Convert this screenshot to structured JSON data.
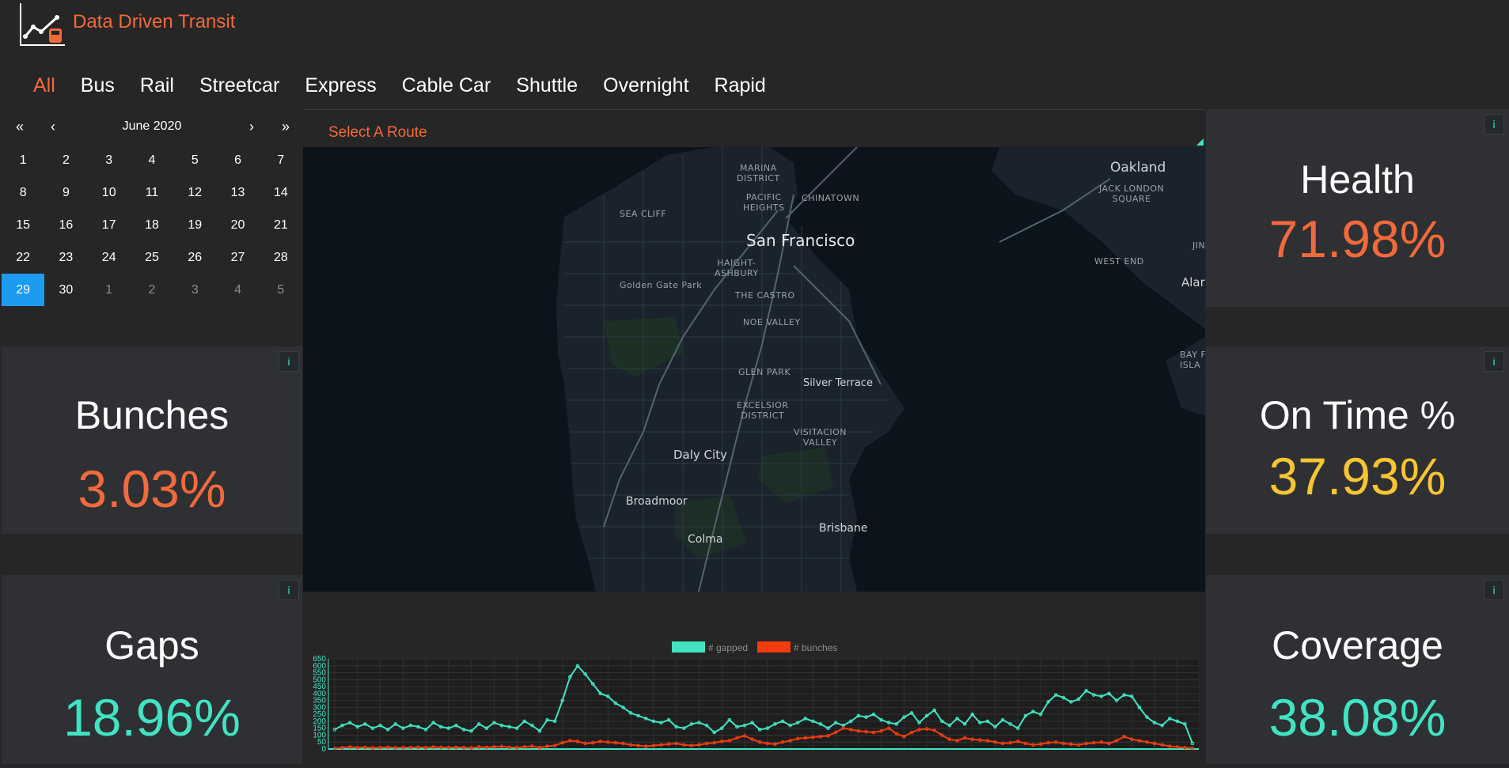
{
  "app": {
    "title": "Data Driven Transit"
  },
  "nav": {
    "tabs": [
      {
        "label": "All",
        "active": true
      },
      {
        "label": "Bus"
      },
      {
        "label": "Rail"
      },
      {
        "label": "Streetcar"
      },
      {
        "label": "Express"
      },
      {
        "label": "Cable Car"
      },
      {
        "label": "Shuttle"
      },
      {
        "label": "Overnight"
      },
      {
        "label": "Rapid"
      }
    ]
  },
  "calendar": {
    "month": "June 2020",
    "nav": {
      "prev_year": "«",
      "prev_month": "‹",
      "next_month": "›",
      "next_year": "»"
    },
    "days": [
      "1",
      "2",
      "3",
      "4",
      "5",
      "6",
      "7",
      "8",
      "9",
      "10",
      "11",
      "12",
      "13",
      "14",
      "15",
      "16",
      "17",
      "18",
      "19",
      "20",
      "21",
      "22",
      "23",
      "24",
      "25",
      "26",
      "27",
      "28",
      "29",
      "30",
      "1",
      "2",
      "3",
      "4",
      "5"
    ],
    "selected": "29",
    "other_month_start_index": 30
  },
  "route": {
    "placeholder": "Select A Route"
  },
  "stats": {
    "health": {
      "title": "Health",
      "value": "71.98%",
      "color": "#f26a3b"
    },
    "bunches": {
      "title": "Bunches",
      "value": "3.03%",
      "color": "#f26a3b"
    },
    "on_time": {
      "title": "On Time %",
      "value": "37.93%",
      "color": "#f7c531"
    },
    "gaps": {
      "title": "Gaps",
      "value": "18.96%",
      "color": "#41e3c3"
    },
    "coverage": {
      "title": "Coverage",
      "value": "38.08%",
      "color": "#41e3c3"
    },
    "info_label": "i"
  },
  "map": {
    "labels": {
      "marina": "MARINA\nDISTRICT",
      "pacific_heights": "PACIFIC\nHEIGHTS",
      "chinatown": "CHINATOWN",
      "sea_cliff": "SEA CLIFF",
      "san_francisco": "San Francisco",
      "haight": "HAIGHT-\nASHBURY",
      "golden_gate_park": "Golden Gate Park",
      "castro": "THE CASTRO",
      "noe_valley": "NOE VALLEY",
      "glen_park": "GLEN PARK",
      "silver_terrace": "Silver Terrace",
      "excelsior": "EXCELSIOR\nDISTRICT",
      "visitacion": "VISITACION\nVALLEY",
      "daly_city": "Daly City",
      "broadmoor": "Broadmoor",
      "brisbane": "Brisbane",
      "colma": "Colma",
      "oakland": "Oakland",
      "jack_london": "JACK LONDON\nSQUARE",
      "west_end": "WEST END",
      "alameda": "Alar",
      "bay_farm": "BAY F\nISLA",
      "jin": "JIN"
    }
  },
  "chart_data": {
    "type": "line",
    "legend": [
      "# gapped",
      "# bunches"
    ],
    "legend_placement": "top",
    "y_ticks": [
      "0",
      "50",
      "100",
      "150",
      "200",
      "250",
      "300",
      "350",
      "400",
      "450",
      "500",
      "550",
      "600",
      "650"
    ],
    "ylim": [
      0,
      650
    ],
    "grid": true,
    "colors": {
      "gapped": "#41e3c3",
      "bunches": "#f23c0f"
    },
    "series": [
      {
        "name": "# gapped",
        "values": [
          140,
          170,
          190,
          160,
          180,
          150,
          170,
          140,
          180,
          150,
          170,
          160,
          140,
          190,
          160,
          150,
          170,
          140,
          130,
          180,
          150,
          190,
          170,
          160,
          150,
          200,
          170,
          130,
          210,
          200,
          350,
          520,
          600,
          540,
          470,
          400,
          380,
          330,
          300,
          260,
          240,
          220,
          200,
          190,
          210,
          160,
          150,
          180,
          190,
          170,
          120,
          150,
          210,
          160,
          170,
          190,
          140,
          150,
          180,
          200,
          170,
          190,
          220,
          200,
          180,
          150,
          190,
          170,
          200,
          240,
          230,
          250,
          210,
          190,
          180,
          230,
          260,
          190,
          240,
          280,
          200,
          170,
          220,
          180,
          250,
          190,
          200,
          160,
          210,
          180,
          150,
          240,
          270,
          250,
          340,
          390,
          370,
          340,
          360,
          420,
          390,
          380,
          400,
          350,
          390,
          380,
          300,
          230,
          190,
          170,
          220,
          200,
          180,
          40
        ]
      },
      {
        "name": "# bunches",
        "values": [
          5,
          10,
          15,
          10,
          12,
          8,
          10,
          12,
          9,
          10,
          11,
          12,
          10,
          14,
          12,
          10,
          12,
          10,
          8,
          14,
          12,
          15,
          18,
          12,
          10,
          15,
          20,
          10,
          20,
          25,
          45,
          60,
          55,
          40,
          45,
          55,
          50,
          45,
          40,
          30,
          25,
          20,
          25,
          30,
          35,
          40,
          30,
          25,
          30,
          40,
          45,
          55,
          60,
          80,
          95,
          70,
          50,
          40,
          35,
          50,
          60,
          75,
          80,
          85,
          90,
          95,
          120,
          150,
          140,
          130,
          125,
          120,
          130,
          150,
          110,
          90,
          120,
          140,
          145,
          135,
          100,
          70,
          60,
          80,
          70,
          65,
          60,
          50,
          40,
          45,
          55,
          40,
          30,
          35,
          45,
          50,
          40,
          35,
          30,
          40,
          45,
          50,
          40,
          60,
          90,
          70,
          60,
          50,
          40,
          30,
          20,
          15,
          10,
          5
        ]
      }
    ]
  }
}
